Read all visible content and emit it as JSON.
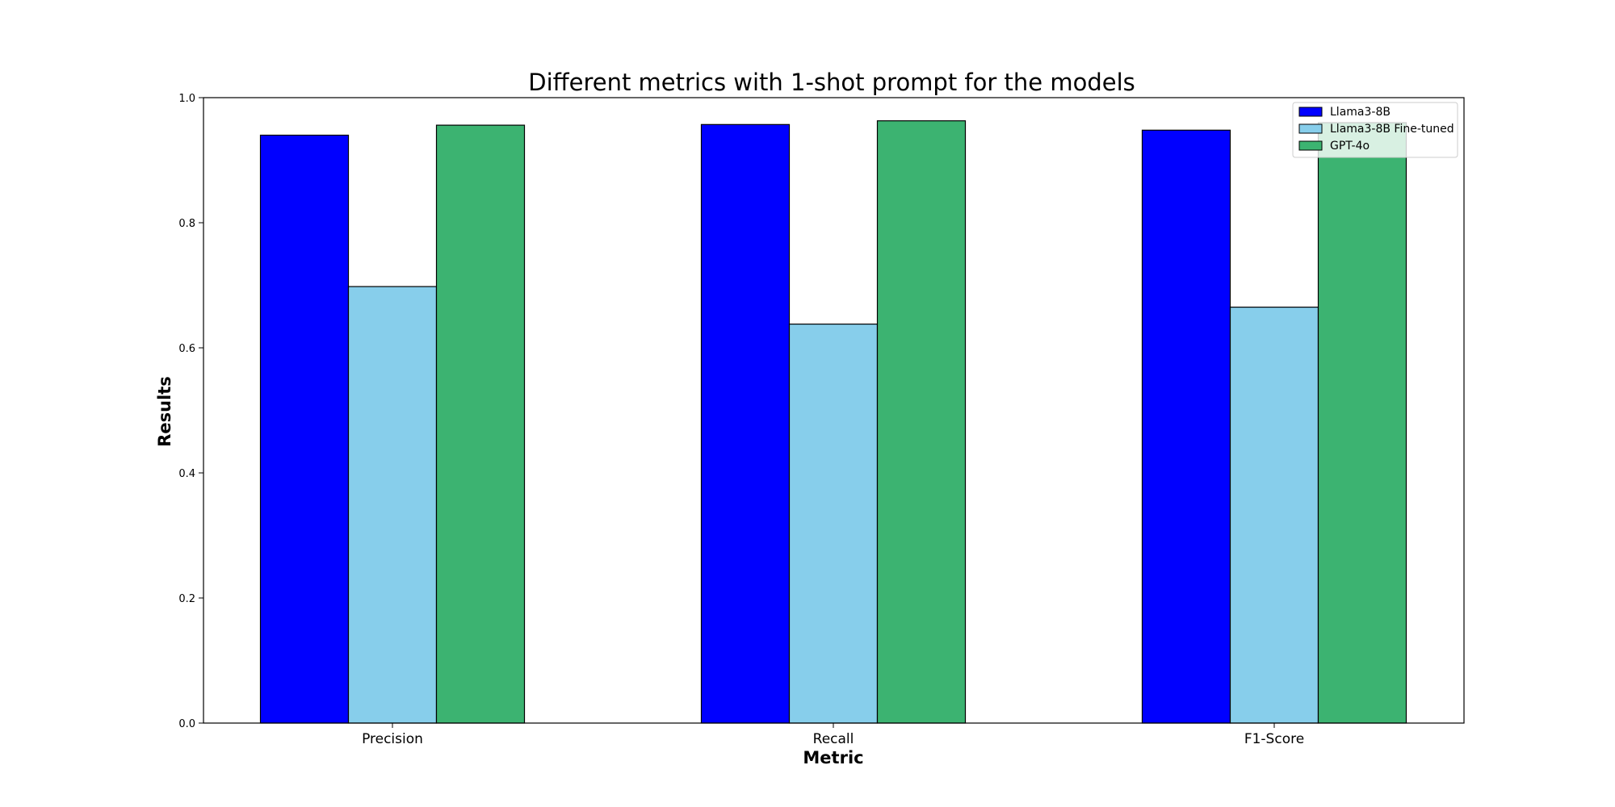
{
  "chart_data": {
    "type": "bar",
    "title": "Different metrics with 1-shot prompt for the models",
    "xlabel": "Metric",
    "ylabel": "Results",
    "categories": [
      "Precision",
      "Recall",
      "F1-Score"
    ],
    "ylim": [
      0,
      1.0
    ],
    "yticks": [
      "0.0",
      "0.2",
      "0.4",
      "0.6",
      "0.8",
      "1.0"
    ],
    "grid": false,
    "legend_position": "top-right",
    "series": [
      {
        "name": "Llama3-8B",
        "color": "#0000ff",
        "values": [
          0.94,
          0.957,
          0.948
        ]
      },
      {
        "name": "Llama3-8B Fine-tuned",
        "color": "#87ceeb",
        "values": [
          0.698,
          0.638,
          0.665
        ]
      },
      {
        "name": "GPT-4o",
        "color": "#3cb371",
        "values": [
          0.956,
          0.963,
          0.96
        ]
      }
    ]
  }
}
